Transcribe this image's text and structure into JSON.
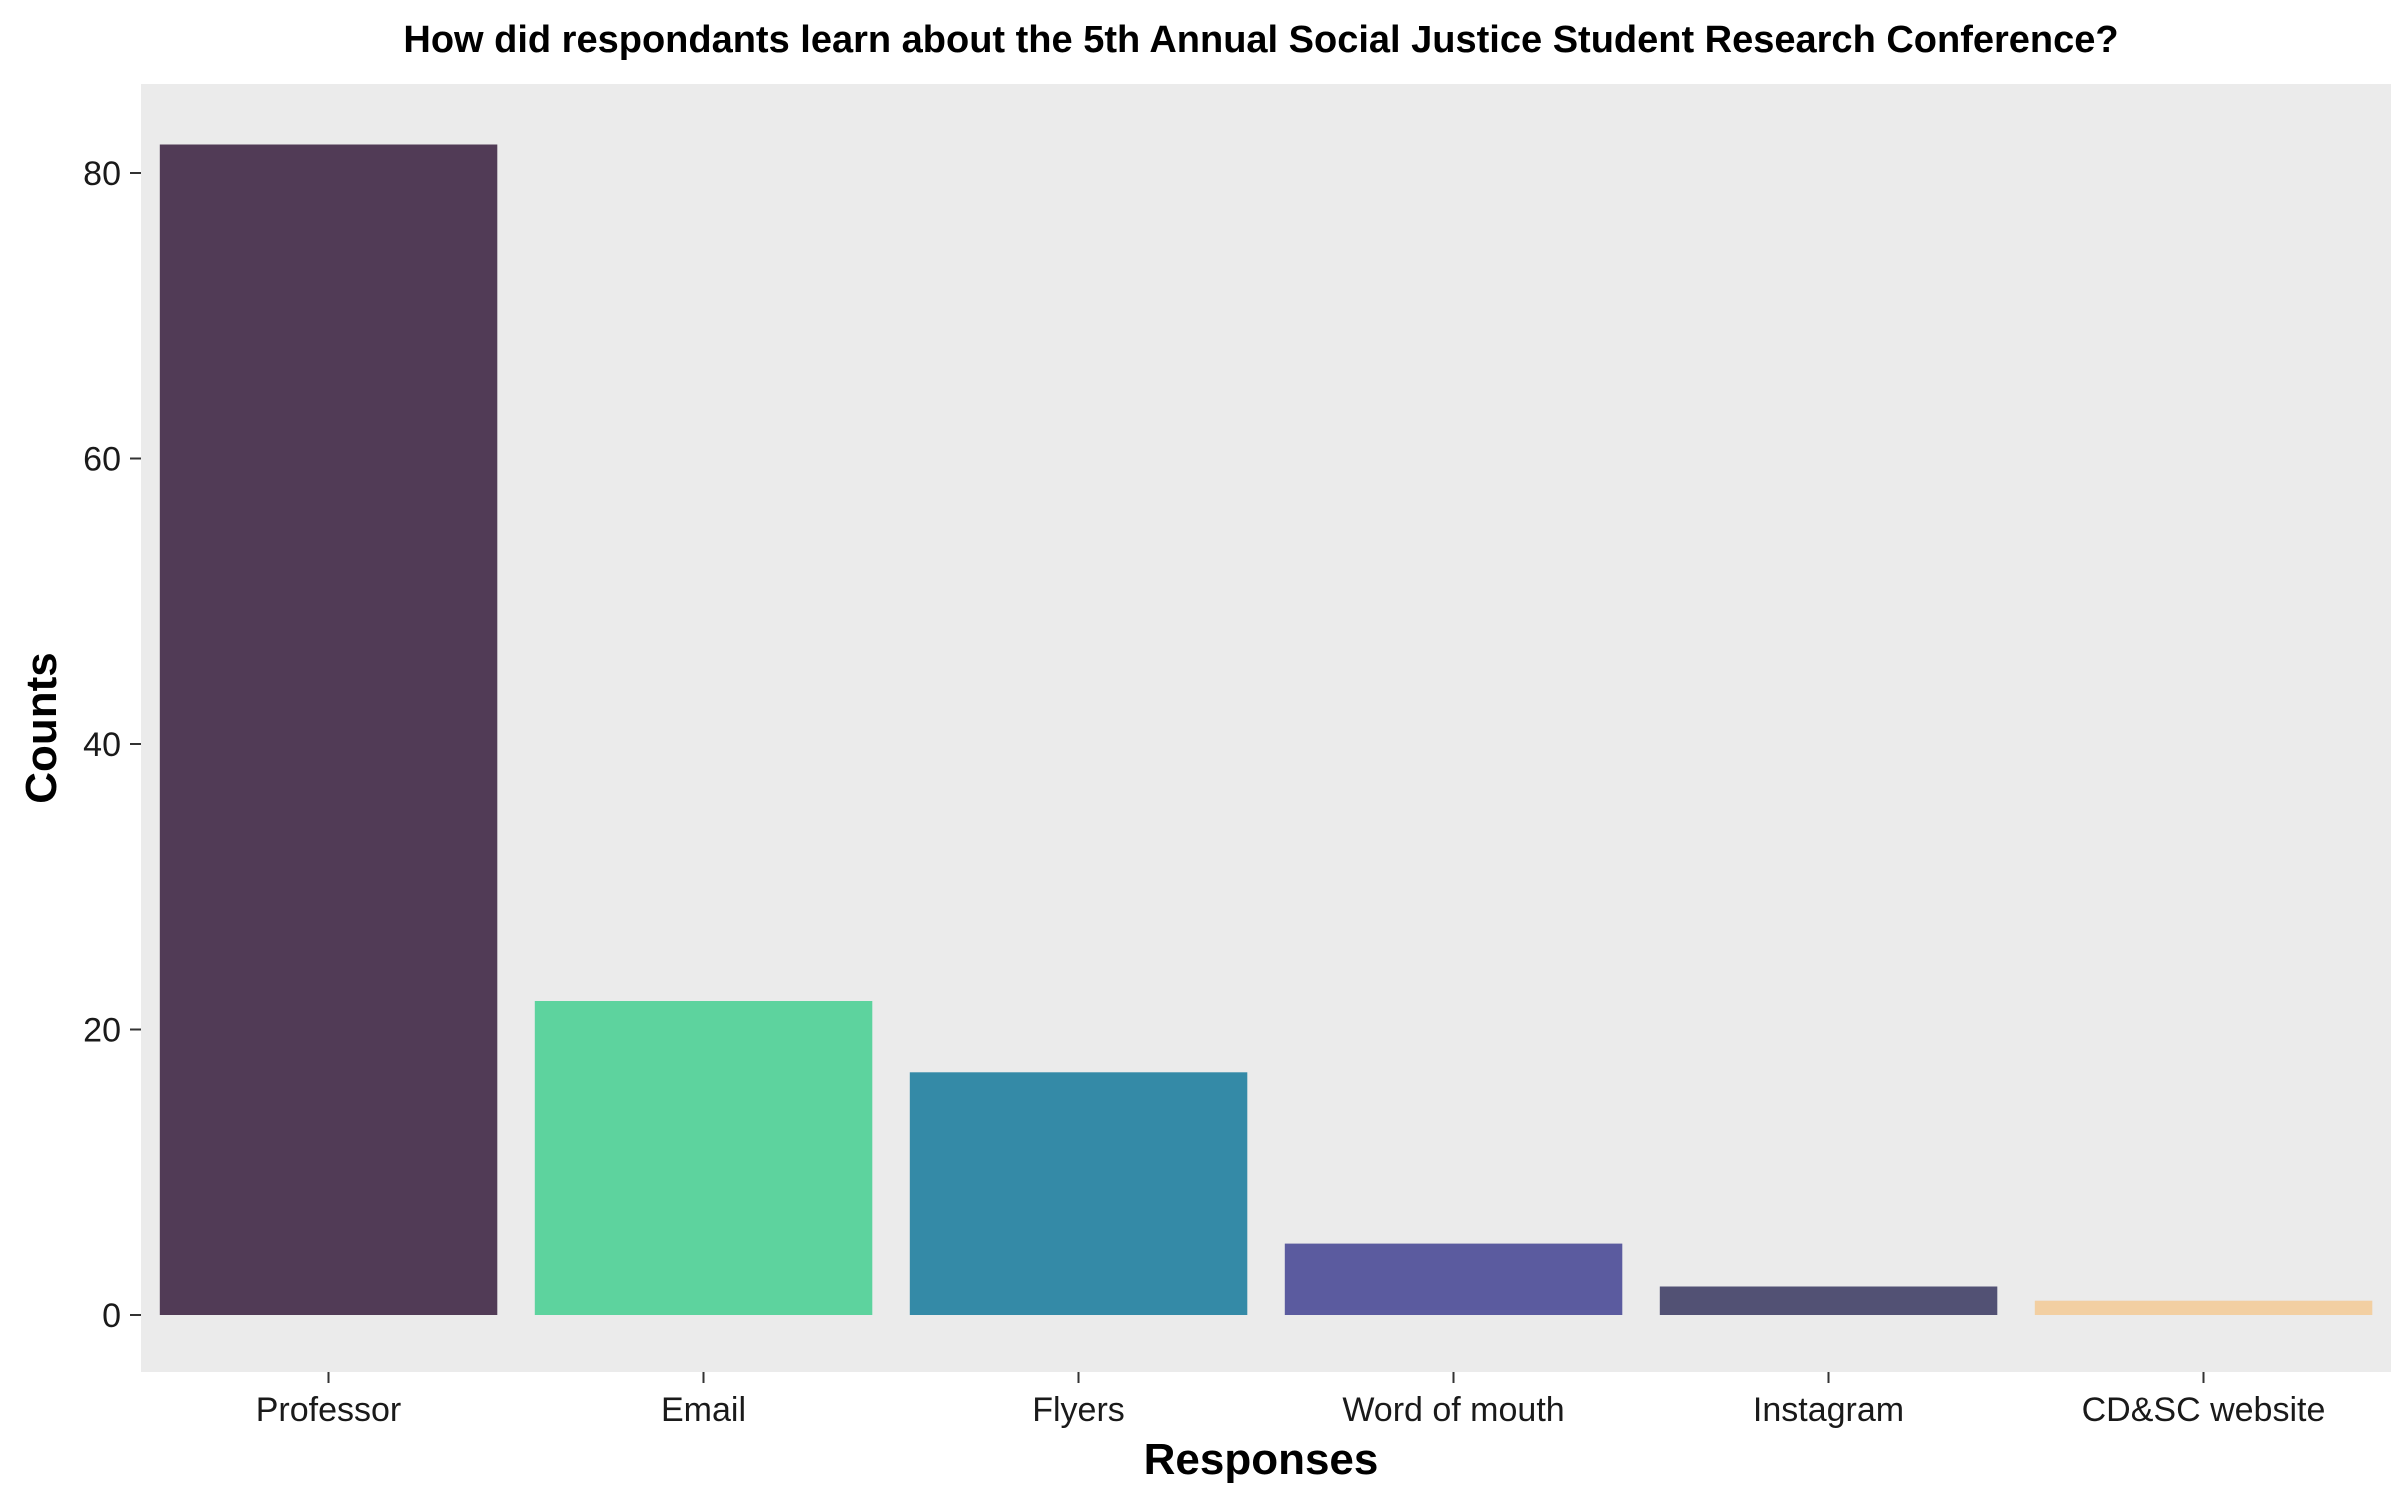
{
  "chart_data": {
    "type": "bar",
    "title": "How did respondants learn about the 5th Annual Social Justice Student Research Conference?",
    "xlabel": "Responses",
    "ylabel": "Counts",
    "categories": [
      "Professor",
      "Email",
      "Flyers",
      "Word of mouth",
      "Instagram",
      "CD&SC website"
    ],
    "values": [
      82,
      22,
      17,
      5,
      2,
      1
    ],
    "colors": [
      "#513B56",
      "#5DD39E",
      "#348AA7",
      "#5B5B9F",
      "#525174",
      "#F2CFA2"
    ],
    "ylim": [
      0,
      86
    ],
    "yticks": [
      0,
      20,
      40,
      60,
      80
    ],
    "grid": false,
    "legend": "none",
    "panel_background": "#EBEBEB"
  }
}
